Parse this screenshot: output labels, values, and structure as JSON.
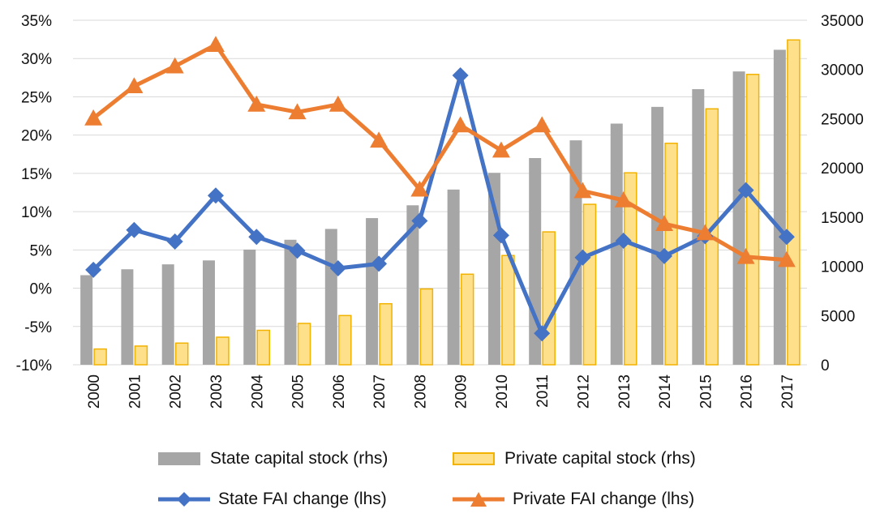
{
  "chart_data": {
    "type": "bar+line",
    "categories": [
      "2000",
      "2001",
      "2002",
      "2003",
      "2004",
      "2005",
      "2006",
      "2007",
      "2008",
      "2009",
      "2010",
      "2011",
      "2012",
      "2013",
      "2014",
      "2015",
      "2016",
      "2017"
    ],
    "left_axis": {
      "min": -0.1,
      "max": 0.35,
      "step": 0.05,
      "ticks": [
        "-10%",
        "-5%",
        "0%",
        "5%",
        "10%",
        "15%",
        "20%",
        "25%",
        "30%",
        "35%"
      ]
    },
    "right_axis": {
      "min": 0,
      "max": 35000,
      "step": 5000,
      "ticks": [
        "0",
        "5000",
        "10000",
        "15000",
        "20000",
        "25000",
        "30000",
        "35000"
      ]
    },
    "bars": [
      {
        "name": "State capital stock (rhs)",
        "color": "#a6a6a6",
        "values": [
          9100,
          9700,
          10200,
          10600,
          11700,
          12700,
          13800,
          14900,
          16200,
          17800,
          19500,
          21000,
          22800,
          24500,
          26200,
          28000,
          29800,
          32000
        ]
      },
      {
        "name": "Private capital stock (rhs)",
        "color": "#ffe08a",
        "border": "#f2b200",
        "values": [
          1600,
          1900,
          2200,
          2800,
          3500,
          4200,
          5000,
          6200,
          7700,
          9200,
          11100,
          13500,
          16300,
          19500,
          22500,
          26000,
          29500,
          33000
        ]
      }
    ],
    "lines": [
      {
        "name": "State FAI change (lhs)",
        "color": "#4472c4",
        "marker": "diamond",
        "values": [
          0.024,
          0.076,
          0.061,
          0.121,
          0.067,
          0.049,
          0.026,
          0.032,
          0.088,
          0.278,
          0.069,
          -0.059,
          0.04,
          0.062,
          0.042,
          0.068,
          0.128,
          0.067
        ]
      },
      {
        "name": "Private FAI change (lhs)",
        "color": "#ed7d31",
        "marker": "triangle",
        "values": [
          0.222,
          0.264,
          0.29,
          0.318,
          0.24,
          0.23,
          0.24,
          0.193,
          0.129,
          0.213,
          0.18,
          0.213,
          0.127,
          0.115,
          0.084,
          0.072,
          0.041,
          0.037
        ]
      }
    ],
    "grid": true,
    "legend_position": "bottom"
  }
}
